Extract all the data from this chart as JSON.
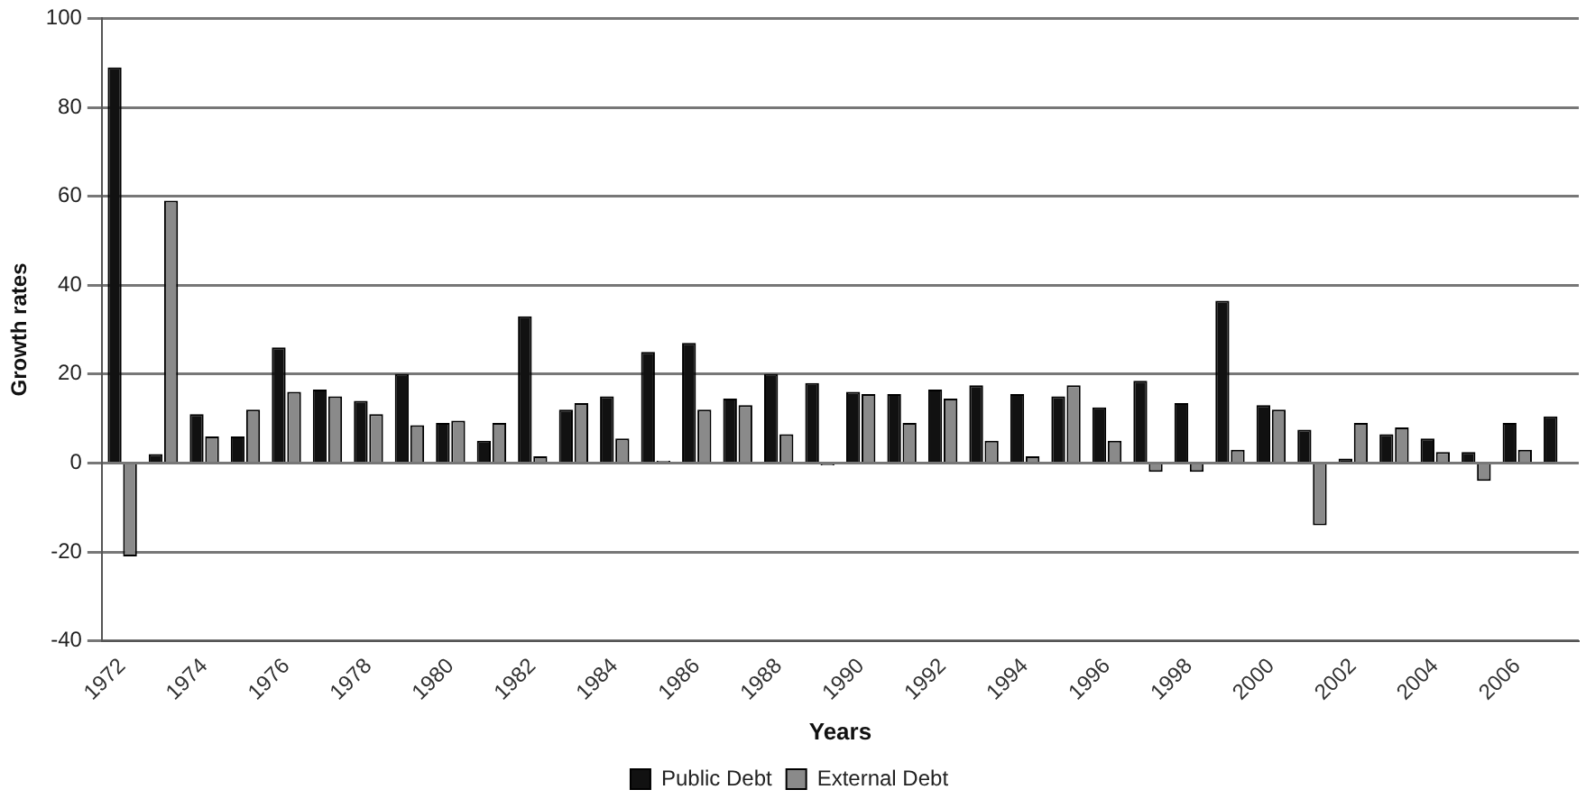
{
  "chart_data": {
    "type": "bar",
    "xlabel": "Years",
    "ylabel": "Growth rates",
    "categories": [
      "1972",
      null,
      "1974",
      null,
      "1976",
      null,
      "1978",
      null,
      "1980",
      null,
      "1982",
      null,
      "1984",
      null,
      "1986",
      null,
      "1988",
      null,
      "1990",
      null,
      "1992",
      null,
      "1994",
      null,
      "1996",
      null,
      "1998",
      null,
      "2000",
      null,
      "2002",
      null,
      "2004",
      null,
      "2006",
      null
    ],
    "series": [
      {
        "name": "Public Debt",
        "color": "#111111",
        "values": [
          89,
          2,
          11,
          6,
          26,
          16.5,
          14,
          20,
          9,
          5,
          33,
          12,
          15,
          25,
          27,
          14.5,
          20,
          18,
          16,
          15.5,
          16.5,
          17.5,
          15.5,
          15,
          12.5,
          18.5,
          13.5,
          36.5,
          13,
          7.5,
          1,
          6.5,
          5.5,
          2.5,
          9,
          10.5
        ]
      },
      {
        "name": "External Debt",
        "color": "#8a8a8a",
        "values": [
          -21,
          59,
          6,
          12,
          16,
          15,
          11,
          8.5,
          9.5,
          9,
          1.5,
          13.5,
          5.5,
          0.5,
          12,
          13,
          6.5,
          -0.5,
          15.5,
          9,
          14.5,
          5,
          1.5,
          17.5,
          5,
          -2,
          -2,
          3,
          12,
          -14,
          9,
          8,
          2.5,
          -4,
          3,
          null
        ]
      }
    ],
    "ylim": [
      -40,
      100
    ],
    "yticks": [
      -40,
      -20,
      0,
      20,
      40,
      60,
      80,
      100
    ],
    "grid": "y",
    "legend": "bottom"
  }
}
